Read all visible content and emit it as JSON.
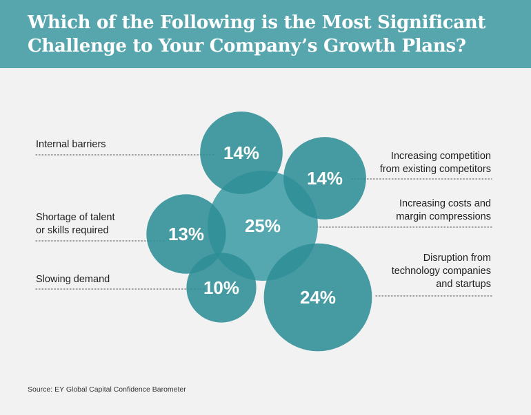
{
  "title_line1": "Which of the Following is the Most Significant",
  "title_line2": "Challenge to Your Company’s Growth Plans?",
  "source": "Source: EY Global Capital Confidence Barometer",
  "colors": {
    "header": "#57a6ae",
    "bubble": "#2d8d95",
    "bubble_light": "#56a8b0",
    "overlap": "#1f6a70",
    "dots": "#888888"
  },
  "chart_data": {
    "type": "bubble",
    "title": "Which of the Following is the Most Significant Challenge to Your Company’s Growth Plans?",
    "categories": [
      "Internal barriers",
      "Increasing competition from existing competitors",
      "Shortage of talent or skills required",
      "Increasing costs and margin compressions",
      "Slowing demand",
      "Disruption from technology companies and startups"
    ],
    "values": [
      14,
      14,
      13,
      25,
      10,
      24
    ],
    "value_labels": [
      "14%",
      "14%",
      "13%",
      "25%",
      "10%",
      "24%"
    ],
    "label_lines": [
      [
        "Internal barriers"
      ],
      [
        "Increasing competition",
        "from existing competitors"
      ],
      [
        "Shortage of talent",
        "or skills required"
      ],
      [
        "Increasing costs and",
        "margin compressions"
      ],
      [
        "Slowing demand"
      ],
      [
        "Disruption from",
        "technology companies",
        "and startups"
      ]
    ],
    "label_side": [
      "left",
      "right",
      "left",
      "right",
      "left",
      "right"
    ],
    "unit": "%"
  }
}
